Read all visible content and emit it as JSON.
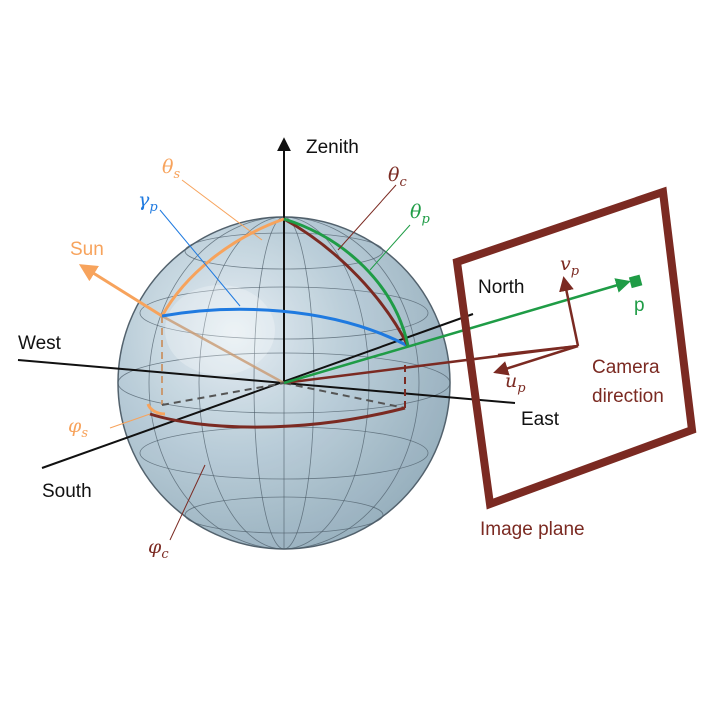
{
  "labels": {
    "zenith": "Zenith",
    "north": "North",
    "south": "South",
    "east": "East",
    "west": "West",
    "sun": "Sun",
    "p": "p",
    "camera_line1": "Camera",
    "camera_line2": "direction",
    "image_plane": "Image plane"
  },
  "math_labels": {
    "theta_s": {
      "base": "θ",
      "sub": "s"
    },
    "theta_c": {
      "base": "θ",
      "sub": "c"
    },
    "theta_p": {
      "base": "θ",
      "sub": "p"
    },
    "gamma_p": {
      "base": "γ",
      "sub": "p"
    },
    "phi_s": {
      "base": "φ",
      "sub": "s"
    },
    "phi_c": {
      "base": "φ",
      "sub": "c"
    },
    "v_p": {
      "base": "v",
      "sub": "p"
    },
    "u_p": {
      "base": "u",
      "sub": "p"
    }
  },
  "colors": {
    "sphere_fill": "#a9c1cf",
    "sphere_stroke": "#4a5a66",
    "axis": "#111111",
    "sun": "#f7a35c",
    "camera": "#7b2a22",
    "pixel": "#1f9c46",
    "gamma": "#1f7ae0",
    "image_plane": "#7b2a22"
  }
}
